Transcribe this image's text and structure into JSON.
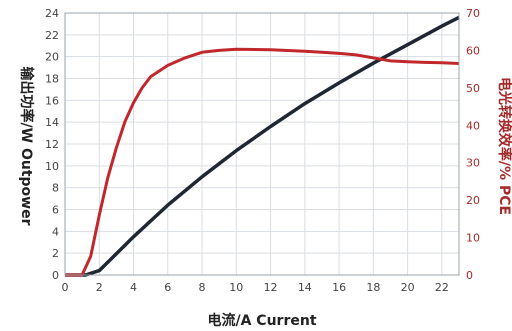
{
  "chart_data": {
    "type": "line",
    "xlabel": "电流/A Current",
    "ylabel_left": "输出功率/W Outpower",
    "ylabel_right": "电光转换效率/% PCE",
    "x_range": [
      0,
      23
    ],
    "y_left_range": [
      0,
      24
    ],
    "y_right_range": [
      0,
      70
    ],
    "x_ticks": [
      "0",
      "2",
      "4",
      "6",
      "8",
      "10",
      "12",
      "14",
      "16",
      "18",
      "20",
      "22"
    ],
    "y_left_ticks": [
      "0",
      "2",
      "4",
      "6",
      "8",
      "10",
      "12",
      "14",
      "16",
      "18",
      "20",
      "22",
      "24"
    ],
    "y_right_ticks": [
      "0",
      "10",
      "20",
      "30",
      "40",
      "50",
      "60",
      "70"
    ],
    "grid": true,
    "colors": {
      "outpower": "#1f2733",
      "pce": "#c0282c",
      "right_axis_text": "#a52a2a",
      "grid": "#d9dde2",
      "tick_text": "#444444"
    },
    "series": [
      {
        "axis": "left",
        "x": [
          0,
          1.2,
          2,
          4,
          6,
          8,
          10,
          12,
          14,
          16,
          18,
          20,
          22,
          23
        ],
        "y": [
          0,
          0,
          0.4,
          3.5,
          6.4,
          9.0,
          11.4,
          13.6,
          15.7,
          17.6,
          19.4,
          21.1,
          22.8,
          23.6
        ]
      },
      {
        "axis": "right",
        "x": [
          0,
          1.0,
          1.5,
          2.0,
          2.5,
          3.0,
          3.5,
          4.0,
          4.5,
          5.0,
          6.0,
          7.0,
          8.0,
          9.0,
          10.0,
          12.0,
          14.0,
          15.0,
          16.0,
          17.0,
          18.0,
          19.0,
          20.0,
          21.0,
          22.0,
          23.0
        ],
        "y": [
          0,
          0,
          5,
          16,
          26,
          34,
          41,
          46,
          50,
          53,
          56,
          58,
          59.5,
          60,
          60.3,
          60.2,
          59.8,
          59.5,
          59.2,
          58.8,
          58,
          57.2,
          57,
          56.8,
          56.7,
          56.5
        ]
      }
    ]
  }
}
